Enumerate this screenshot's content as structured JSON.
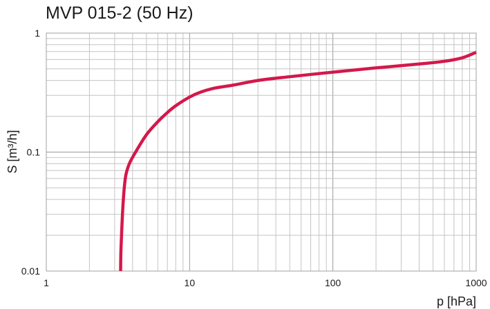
{
  "chart_data": {
    "type": "line",
    "title": "MVP 015-2 (50 Hz)",
    "xlabel": "p  [hPa]",
    "ylabel": "S  [m³/h]",
    "x_scale": "log",
    "y_scale": "log",
    "xlim": [
      1,
      1000
    ],
    "ylim": [
      0.01,
      1
    ],
    "x_tick_labels": [
      "1",
      "10",
      "100",
      "1000"
    ],
    "y_tick_labels": [
      "0.01",
      "0.1",
      "1"
    ],
    "grid": true,
    "line_color": "#d4184c",
    "series": [
      {
        "x": [
          3.3,
          3.32,
          3.4,
          3.5,
          3.6,
          3.8,
          4.2,
          5,
          6,
          7,
          8,
          10,
          12,
          15,
          20,
          30,
          50,
          100,
          200,
          400,
          600,
          800,
          1000
        ],
        "y": [
          0.01,
          0.015,
          0.03,
          0.05,
          0.065,
          0.08,
          0.1,
          0.14,
          0.18,
          0.215,
          0.245,
          0.29,
          0.32,
          0.345,
          0.365,
          0.4,
          0.43,
          0.47,
          0.51,
          0.55,
          0.58,
          0.62,
          0.69
        ]
      }
    ]
  }
}
